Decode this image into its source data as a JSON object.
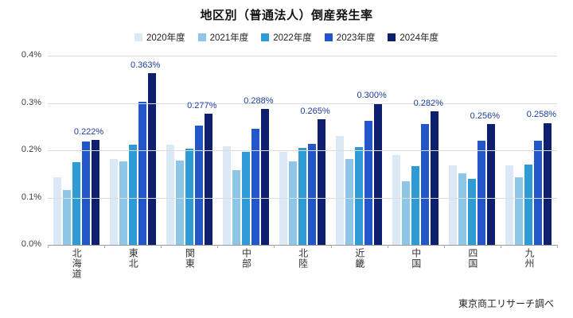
{
  "chart": {
    "title": "地区別（普通法人）倒産発生率",
    "source": "東京商工リサーチ調べ"
  },
  "chart_data": {
    "type": "bar",
    "title": "地区別（普通法人）倒産発生率",
    "categories": [
      "北海道",
      "東北",
      "関東",
      "中部",
      "北陸",
      "近畿",
      "中国",
      "四国",
      "九州"
    ],
    "series": [
      {
        "name": "2020年度",
        "color": "#dbe9f7",
        "values": [
          0.143,
          0.181,
          0.211,
          0.208,
          0.197,
          0.231,
          0.19,
          0.168,
          0.168
        ]
      },
      {
        "name": "2021年度",
        "color": "#8dc6e6",
        "values": [
          0.116,
          0.176,
          0.178,
          0.158,
          0.177,
          0.181,
          0.135,
          0.152,
          0.143
        ]
      },
      {
        "name": "2022年度",
        "color": "#2e9bd5",
        "values": [
          0.175,
          0.212,
          0.203,
          0.196,
          0.205,
          0.206,
          0.167,
          0.14,
          0.17
        ]
      },
      {
        "name": "2023年度",
        "color": "#2356c8",
        "values": [
          0.218,
          0.303,
          0.252,
          0.245,
          0.213,
          0.262,
          0.255,
          0.22,
          0.22
        ]
      },
      {
        "name": "2024年度",
        "color": "#0e1f6d",
        "values": [
          0.222,
          0.363,
          0.277,
          0.288,
          0.265,
          0.3,
          0.282,
          0.256,
          0.258
        ]
      }
    ],
    "data_labels": {
      "series": "2024年度",
      "labels": [
        "0.222%",
        "0.363%",
        "0.277%",
        "0.288%",
        "0.265%",
        "0.300%",
        "0.282%",
        "0.256%",
        "0.258%"
      ]
    },
    "xlabel": "",
    "ylabel": "",
    "ylim": [
      0,
      0.4
    ],
    "yticks": [
      {
        "value": 0.0,
        "label": "0.0%"
      },
      {
        "value": 0.1,
        "label": "0.1%"
      },
      {
        "value": 0.2,
        "label": "0.2%"
      },
      {
        "value": 0.3,
        "label": "0.3%"
      },
      {
        "value": 0.4,
        "label": "0.4%"
      }
    ],
    "grid": true,
    "legend_position": "top"
  }
}
